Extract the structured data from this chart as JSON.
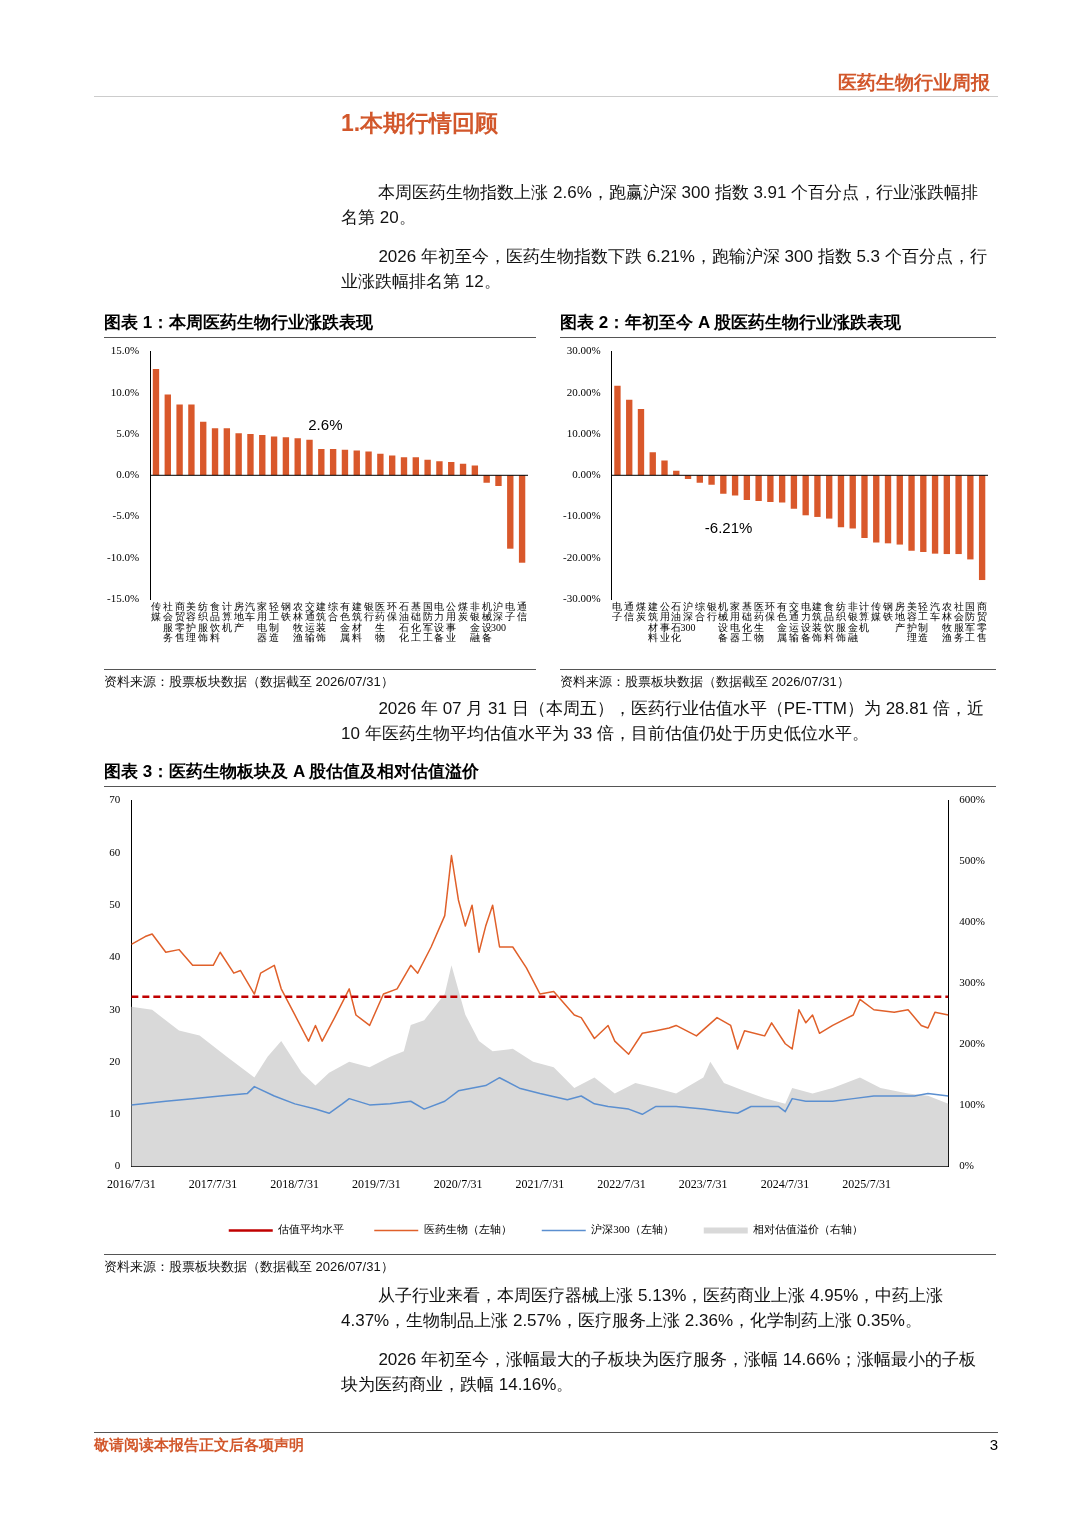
{
  "chart_data": [
    {
      "type": "bar",
      "title": "图表 1：本周医药生物行业涨跌表现",
      "categories": [
        "传媒",
        "社会服务",
        "商贸零售",
        "美容护理",
        "纺织服饰",
        "食品饮料",
        "计算机",
        "房地产",
        "汽车",
        "家用电器",
        "轻工制造",
        "钢铁",
        "农林牧渔",
        "交通运输",
        "建筑装饰",
        "综合",
        "有色金属",
        "建筑材料",
        "银行",
        "医药生物",
        "环保",
        "石油石化",
        "基础化工",
        "国防军工",
        "电力设备",
        "公用事业",
        "煤炭",
        "非银金融",
        "机械设备",
        "沪深300",
        "电子",
        "通信"
      ],
      "values": [
        12.9,
        9.8,
        8.6,
        8.6,
        6.5,
        5.7,
        5.7,
        5.1,
        5.0,
        4.9,
        4.7,
        4.6,
        4.5,
        4.3,
        3.2,
        3.2,
        3.1,
        3.0,
        2.9,
        2.6,
        2.4,
        2.2,
        2.2,
        1.9,
        1.7,
        1.6,
        1.4,
        1.2,
        -0.9,
        -1.3,
        -8.9,
        -10.6
      ],
      "color": "#d9582b",
      "ylim": [
        -15,
        15
      ],
      "yticks": [
        {
          "value": -15,
          "label": "-15.0%"
        },
        {
          "value": -10,
          "label": "-10.0%"
        },
        {
          "value": -5,
          "label": "-5.0%"
        },
        {
          "value": 0,
          "label": "0.0%"
        },
        {
          "value": 5,
          "label": "5.0%"
        },
        {
          "value": 10,
          "label": "10.0%"
        },
        {
          "value": 15,
          "label": "15.0%"
        }
      ],
      "annotations": [
        "医药生物行业周报",
        "1.本期行情回顾",
        "本周医药生物指数上涨 2.6%，跑赢沪深 300 指数 3.91 个百分点，行业涨跌幅排名第 20。",
        "2026 年初至今，医药生物指数下跌 6.21%，跑输沪深 300 指数 5.3 个百分点，行业涨跌幅排名第 12。",
        {
          "text": "2.6%",
          "x": "医药生物",
          "y": 2.6
        },
        "资料来源：股票板块数据（数据截至 2026/07/31）"
      ]
    },
    {
      "type": "bar",
      "title": "图表 2：年初至今 A 股医药生物行业涨跌表现",
      "categories": [
        "电子",
        "通信",
        "煤炭",
        "建筑材料",
        "公用事业",
        "石油石化",
        "沪深300",
        "综合",
        "银行",
        "机械设备",
        "家用电器",
        "基础化工",
        "医药生物",
        "环保",
        "有色金属",
        "交通运输",
        "电力设备",
        "建筑装饰",
        "食品饮料",
        "纺织服饰",
        "非银金融",
        "计算机",
        "传媒",
        "钢铁",
        "房地产",
        "美容护理",
        "轻工制造",
        "汽车",
        "农林牧渔",
        "社会服务",
        "国防军工",
        "商贸零售"
      ],
      "values": [
        21.7,
        18.3,
        16.1,
        5.6,
        3.6,
        1.1,
        -0.9,
        -1.8,
        -2.3,
        -4.5,
        -4.9,
        -6.0,
        -6.21,
        -6.5,
        -6.6,
        -8.1,
        -9.7,
        -10.1,
        -10.5,
        -12.6,
        -12.9,
        -15.2,
        -16.3,
        -16.5,
        -16.8,
        -18.3,
        -18.6,
        -19.0,
        -19.1,
        -19.1,
        -20.4,
        -25.4
      ],
      "color": "#d9582b",
      "ylim": [
        -30,
        30
      ],
      "yticks": [
        {
          "value": -30,
          "label": "-30.00%"
        },
        {
          "value": -20,
          "label": "-20.00%"
        },
        {
          "value": -10,
          "label": "-10.00%"
        },
        {
          "value": 0,
          "label": "0.00%"
        },
        {
          "value": 10,
          "label": "10.00%"
        },
        {
          "value": 20,
          "label": "20.00%"
        },
        {
          "value": 30,
          "label": "30.00%"
        }
      ],
      "annotations": [
        {
          "text": "-6.21%",
          "x": "医药生物",
          "y": -6.21
        },
        "资料来源：股票板块数据（数据截至 2026/07/31）"
      ]
    },
    {
      "type": "line",
      "title": "图表 3：医药生物板块及 A 股估值及相对估值溢价",
      "series": [
        {
          "name": "相对估值溢价（右轴）",
          "type": "area",
          "axis": "y2",
          "color": "#d9d9d9",
          "x": [
            "2016-07-31",
            "2016-11",
            "2017-03",
            "2017-06",
            "2017-10",
            "2018-02",
            "2018-04",
            "2018-06",
            "2018-09",
            "2018-11",
            "2019-01",
            "2019-04",
            "2019-07",
            "2019-10",
            "2019-12",
            "2020-01",
            "2020-03",
            "2020-06",
            "2020-07",
            "2020-09",
            "2020-11",
            "2021-01",
            "2021-04",
            "2021-07",
            "2021-10",
            "2022-01",
            "2022-04",
            "2022-07",
            "2022-10",
            "2023-01",
            "2023-04",
            "2023-08",
            "2023-09",
            "2023-11",
            "2024-02",
            "2024-05",
            "2024-08",
            "2024-09",
            "2024-12",
            "2025-03",
            "2025-07",
            "2025-10",
            "2026-02",
            "2026-05",
            "2026-07-31"
          ],
          "values": [
            262,
            257,
            223,
            215,
            180,
            146,
            180,
            206,
            154,
            133,
            154,
            172,
            163,
            180,
            189,
            232,
            240,
            283,
            330,
            249,
            206,
            189,
            193,
            172,
            163,
            129,
            146,
            120,
            137,
            129,
            120,
            146,
            172,
            137,
            124,
            112,
            103,
            129,
            120,
            129,
            146,
            129,
            120,
            116,
            103
          ]
        },
        {
          "name": "医药生物（左轴）",
          "type": "line",
          "axis": "y",
          "color": "#e0602a",
          "x": [
            "2016-07-31",
            "2016-10",
            "2016-11",
            "2017-01",
            "2017-03",
            "2017-05",
            "2017-08",
            "2017-09",
            "2017-11",
            "2017-12",
            "2018-02",
            "2018-03",
            "2018-05",
            "2018-06",
            "2018-08",
            "2018-10",
            "2018-11",
            "2018-12",
            "2019-02",
            "2019-04",
            "2019-05",
            "2019-07",
            "2019-09",
            "2019-11",
            "2020-01",
            "2020-02",
            "2020-04",
            "2020-06",
            "2020-07",
            "2020-08",
            "2020-09",
            "2020-10",
            "2020-11",
            "2020-12",
            "2021-01",
            "2021-02",
            "2021-04",
            "2021-06",
            "2021-08",
            "2021-10",
            "2022-01",
            "2022-02",
            "2022-04",
            "2022-06",
            "2022-07",
            "2022-09",
            "2022-11",
            "2023-01",
            "2023-03",
            "2023-04",
            "2023-07",
            "2023-10",
            "2023-12",
            "2024-01",
            "2024-02",
            "2024-05",
            "2024-06",
            "2024-08",
            "2024-09",
            "2024-10",
            "2024-11",
            "2024-12",
            "2025-01",
            "2025-03",
            "2025-06",
            "2025-07",
            "2025-09",
            "2025-12",
            "2026-02",
            "2026-04",
            "2026-05",
            "2026-06",
            "2026-07-31"
          ],
          "values": [
            42.5,
            44,
            44.5,
            41,
            41.5,
            38.5,
            38.5,
            41,
            37,
            37.5,
            33,
            37,
            38.5,
            34,
            29,
            24,
            27,
            24,
            29,
            34,
            29,
            27,
            33,
            34,
            38.5,
            37,
            42,
            48,
            59.5,
            51,
            46,
            50,
            41,
            46,
            50,
            42,
            42,
            38,
            33,
            33.5,
            29,
            28.5,
            24.5,
            27,
            24,
            21.5,
            25.5,
            26,
            26.5,
            27,
            25,
            28.5,
            27,
            22.5,
            26,
            25,
            27.5,
            23.5,
            22.5,
            30,
            27.5,
            29,
            25.5,
            27,
            29,
            32,
            30,
            29.5,
            30,
            27,
            26.5,
            29.5,
            29
          ]
        },
        {
          "name": "沪深300（左轴）",
          "type": "line",
          "axis": "y",
          "color": "#5b8fd0",
          "x": [
            "2016-07-31",
            "2017-01",
            "2017-05",
            "2017-09",
            "2018-01",
            "2018-02",
            "2018-05",
            "2018-08",
            "2018-11",
            "2019-01",
            "2019-03",
            "2019-04",
            "2019-07",
            "2019-10",
            "2020-01",
            "2020-03",
            "2020-06",
            "2020-08",
            "2020-12",
            "2021-02",
            "2021-05",
            "2021-08",
            "2021-12",
            "2022-02",
            "2022-04",
            "2022-06",
            "2022-09",
            "2022-11",
            "2023-01",
            "2023-04",
            "2023-08",
            "2023-11",
            "2024-01",
            "2024-03",
            "2024-07",
            "2024-08",
            "2024-09",
            "2024-11",
            "2025-03",
            "2025-06",
            "2025-09",
            "2025-12",
            "2026-03",
            "2026-05",
            "2026-07-31"
          ],
          "values": [
            11.8,
            12.5,
            13,
            13.5,
            14,
            15.3,
            13.5,
            12,
            11,
            10.2,
            12,
            13,
            11.8,
            12,
            12.5,
            11,
            12.5,
            14.5,
            15.5,
            17,
            15,
            14,
            12.8,
            13.5,
            12,
            11.5,
            11,
            10,
            11.5,
            11.5,
            11,
            10.5,
            10.2,
            11.5,
            11.5,
            10.5,
            13,
            12.5,
            12.5,
            13,
            13.5,
            13.5,
            13.5,
            14,
            13.5
          ]
        }
      ],
      "ref_lines": [
        {
          "axis": "y",
          "value": 32.5,
          "label": "估值平均水平",
          "color": "#c00000",
          "line_style": "dashed"
        }
      ],
      "xlim": [
        "2016-07-31",
        "2026-07-31"
      ],
      "xticks": [
        {
          "value": "2016-07-31",
          "label": "2016/7/31"
        },
        {
          "value": "2017-07-31",
          "label": "2017/7/31"
        },
        {
          "value": "2018-07-31",
          "label": "2018/7/31"
        },
        {
          "value": "2019-07-31",
          "label": "2019/7/31"
        },
        {
          "value": "2020-07-31",
          "label": "2020/7/31"
        },
        {
          "value": "2021-07-31",
          "label": "2021/7/31"
        },
        {
          "value": "2022-07-31",
          "label": "2022/7/31"
        },
        {
          "value": "2023-07-31",
          "label": "2023/7/31"
        },
        {
          "value": "2024-07-31",
          "label": "2024/7/31"
        },
        {
          "value": "2025-07-31",
          "label": "2025/7/31"
        }
      ],
      "ylim": [
        0,
        70
      ],
      "yticks": [
        0,
        10,
        20,
        30,
        40,
        50,
        60,
        70
      ],
      "y2lim": [
        0,
        600
      ],
      "y2ticks": [
        {
          "value": 0,
          "label": "0%"
        },
        {
          "value": 100,
          "label": "100%"
        },
        {
          "value": 200,
          "label": "200%"
        },
        {
          "value": 300,
          "label": "300%"
        },
        {
          "value": 400,
          "label": "400%"
        },
        {
          "value": 500,
          "label": "500%"
        },
        {
          "value": 600,
          "label": "600%"
        }
      ],
      "legend": "bottom",
      "annotations": [
        "2026 年 07 月 31 日（本周五），医药行业估值水平（PE-TTM）为 28.81 倍，近 10 年医药生物平均估值水平为 33 倍，目前估值仍处于历史低位水平。",
        "资料来源：股票板块数据（数据截至 2026/07/31）",
        "从子行业来看，本周医疗器械上涨 5.13%，医药商业上涨 4.95%，中药上涨 4.37%，生物制品上涨 2.57%，医疗服务上涨 2.36%，化学制药上涨 0.35%。",
        "2026 年初至今，涨幅最大的子板块为医疗服务，涨幅 14.66%；涨幅最小的子板块为医药商业，跌幅 14.16%。",
        "敬请阅读本报告正文后各项声明",
        "3"
      ]
    }
  ]
}
